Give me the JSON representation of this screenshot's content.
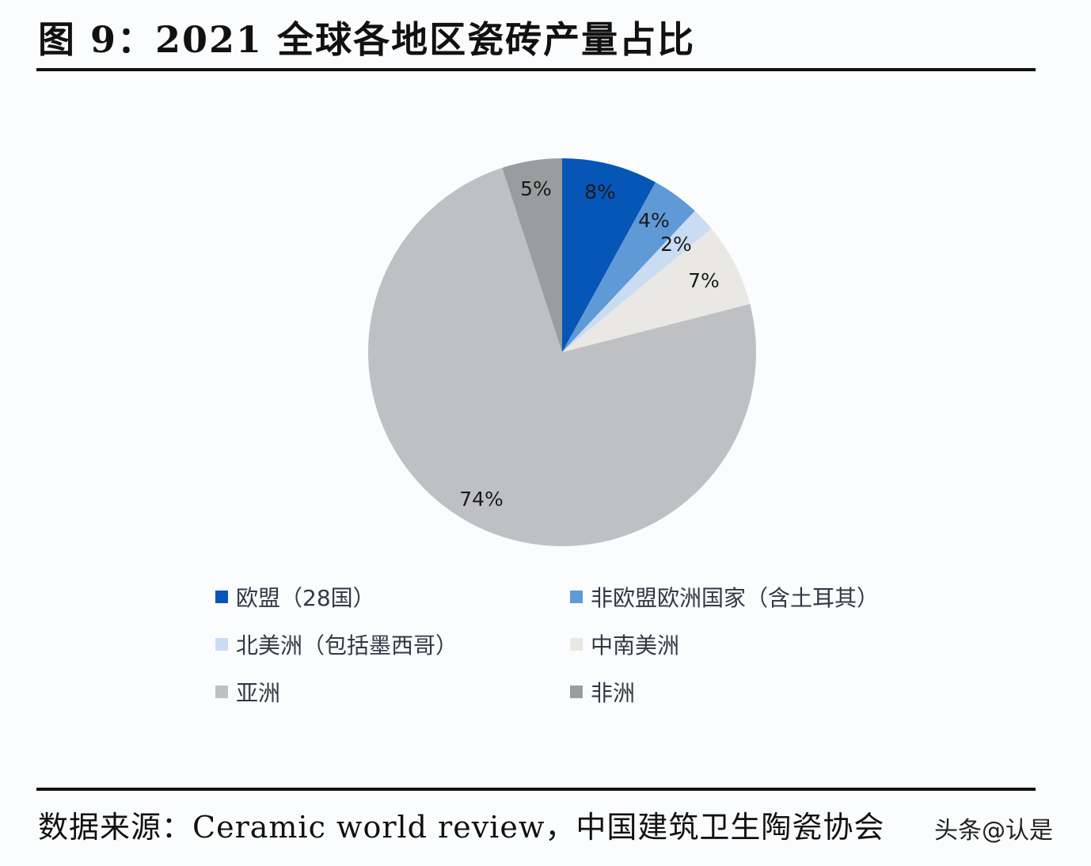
{
  "header": {
    "title": "图  9：2021 全球各地区瓷砖产量占比"
  },
  "chart_data": {
    "type": "pie",
    "title": "2021 全球各地区瓷砖产量占比",
    "figure_number": "图 9",
    "start_angle_deg": 0,
    "direction": "clockwise",
    "categories": [
      "欧盟（28国）",
      "非欧盟欧洲国家（含土耳其）",
      "北美洲（包括墨西哥）",
      "中南美洲",
      "亚洲",
      "非洲"
    ],
    "values": [
      8,
      4,
      2,
      7,
      74,
      5
    ],
    "labels": [
      "8%",
      "4%",
      "2%",
      "7%",
      "74%",
      "5%"
    ],
    "colors": [
      "#0656b8",
      "#5f9ad6",
      "#c9dcf2",
      "#e9e8e5",
      "#bfc0c3",
      "#9b9c9e"
    ],
    "legend_position": "bottom",
    "unit": "%"
  },
  "legend": {
    "items": [
      {
        "label": "欧盟（28国）",
        "color": "#0656b8"
      },
      {
        "label": "非欧盟欧洲国家（含土耳其）",
        "color": "#5f9ad6"
      },
      {
        "label": "北美洲（包括墨西哥）",
        "color": "#c9dcf2"
      },
      {
        "label": "中南美洲",
        "color": "#e9e8e5"
      },
      {
        "label": "亚洲",
        "color": "#bfc0c3"
      },
      {
        "label": "非洲",
        "color": "#9b9c9e"
      }
    ]
  },
  "footer": {
    "source": "数据来源：Ceramic world review，中国建筑卫生陶瓷协会",
    "watermark": "头条@认是"
  }
}
